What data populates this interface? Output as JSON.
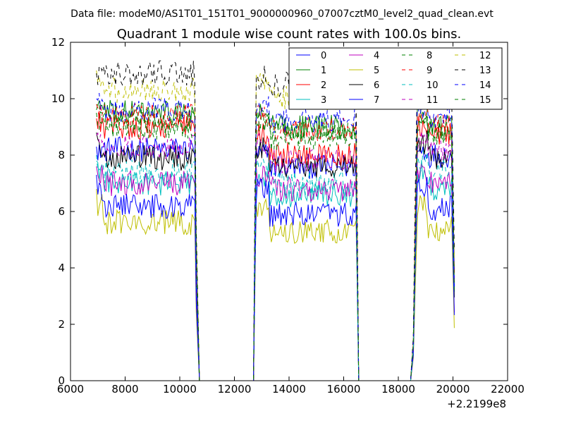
{
  "chart_data": {
    "type": "line",
    "suptitle": "Data file: modeM0/AS1T01_151T01_9000000960_07007cztM0_level2_quad_clean.evt",
    "title": "Quadrant 1 module wise count rates with 100.0s bins.",
    "xlabel": "",
    "ylabel": "",
    "x_offset_label": "+2.2199e8",
    "xlim": [
      6000,
      22000
    ],
    "ylim": [
      0,
      12
    ],
    "xticks": [
      "6000",
      "8000",
      "10000",
      "12000",
      "14000",
      "16000",
      "18000",
      "20000",
      "22000"
    ],
    "yticks": [
      "0",
      "2",
      "4",
      "6",
      "8",
      "10",
      "12"
    ],
    "grid": false,
    "legend_position": "top-right",
    "segments": [
      {
        "x_start": 6950,
        "x_end": 10550,
        "ramp_down_end": 10720
      },
      {
        "x_start": 12800,
        "x_end": 16450,
        "ramp_up_start": 12700,
        "ramp_down_end": 16550
      },
      {
        "x_start": 18700,
        "x_end": 19950,
        "ramp_up_start": 18450,
        "ramp_down_end": 20050
      }
    ],
    "series": [
      {
        "name": "0",
        "color": "#0000ff",
        "dash": "solid",
        "levels": [
          8.2,
          7.6,
          8.0
        ],
        "start": 8.3
      },
      {
        "name": "1",
        "color": "#008000",
        "dash": "solid",
        "levels": [
          9.5,
          9.0,
          9.0
        ],
        "start": 9.8
      },
      {
        "name": "2",
        "color": "#ff0000",
        "dash": "solid",
        "levels": [
          9.0,
          8.0,
          8.7
        ],
        "start": 9.3
      },
      {
        "name": "3",
        "color": "#00bfbf",
        "dash": "solid",
        "levels": [
          7.0,
          6.6,
          6.8
        ],
        "start": 7.8
      },
      {
        "name": "4",
        "color": "#bf00bf",
        "dash": "solid",
        "levels": [
          7.0,
          6.8,
          7.0
        ],
        "start": 7.6
      },
      {
        "name": "5",
        "color": "#bfbf00",
        "dash": "solid",
        "levels": [
          5.6,
          5.3,
          5.4
        ],
        "start": 6.8
      },
      {
        "name": "6",
        "color": "#000000",
        "dash": "solid",
        "levels": [
          7.9,
          7.6,
          7.9
        ],
        "start": 8.8
      },
      {
        "name": "7",
        "color": "#0000ff",
        "dash": "solid",
        "levels": [
          6.2,
          5.9,
          6.1
        ],
        "start": 7.3
      },
      {
        "name": "8",
        "color": "#008000",
        "dash": "dashed",
        "levels": [
          9.2,
          8.8,
          8.8
        ],
        "start": 9.6
      },
      {
        "name": "9",
        "color": "#ff0000",
        "dash": "dashed",
        "levels": [
          9.4,
          8.9,
          9.0
        ],
        "start": 9.8
      },
      {
        "name": "10",
        "color": "#00bfbf",
        "dash": "dashed",
        "levels": [
          7.4,
          7.0,
          7.5
        ],
        "start": 8.0
      },
      {
        "name": "11",
        "color": "#bf00bf",
        "dash": "dashed",
        "levels": [
          8.3,
          7.8,
          8.1
        ],
        "start": 8.7
      },
      {
        "name": "12",
        "color": "#bfbf00",
        "dash": "dashed",
        "levels": [
          10.3,
          10.0,
          10.1
        ],
        "start": 11.0
      },
      {
        "name": "13",
        "color": "#000000",
        "dash": "dashed",
        "levels": [
          10.9,
          10.5,
          10.5
        ],
        "start": 10.9
      },
      {
        "name": "14",
        "color": "#0000ff",
        "dash": "dashed",
        "levels": [
          9.6,
          9.2,
          9.3
        ],
        "start": 10.0
      },
      {
        "name": "15",
        "color": "#008000",
        "dash": "dashed",
        "levels": [
          9.0,
          8.6,
          8.8
        ],
        "start": 9.5
      }
    ]
  }
}
